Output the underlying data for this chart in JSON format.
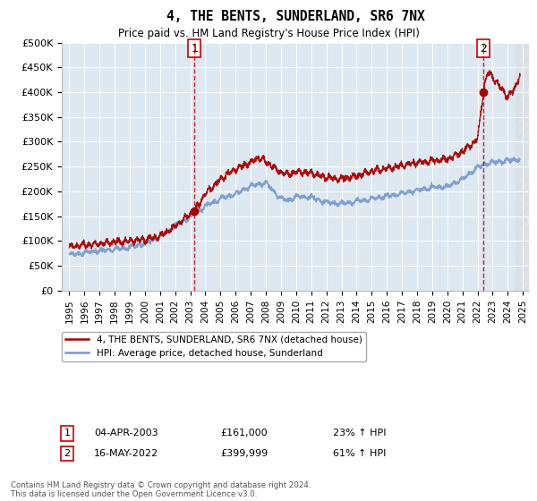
{
  "title": "4, THE BENTS, SUNDERLAND, SR6 7NX",
  "subtitle": "Price paid vs. HM Land Registry's House Price Index (HPI)",
  "ylim": [
    0,
    500000
  ],
  "yticks": [
    0,
    50000,
    100000,
    150000,
    200000,
    250000,
    300000,
    350000,
    400000,
    450000,
    500000
  ],
  "ytick_labels": [
    "£0",
    "£50K",
    "£100K",
    "£150K",
    "£200K",
    "£250K",
    "£300K",
    "£350K",
    "£400K",
    "£450K",
    "£500K"
  ],
  "xlim_start": 1994.5,
  "xlim_end": 2025.4,
  "xtick_years": [
    1995,
    1996,
    1997,
    1998,
    1999,
    2000,
    2001,
    2002,
    2003,
    2004,
    2005,
    2006,
    2007,
    2008,
    2009,
    2010,
    2011,
    2012,
    2013,
    2014,
    2015,
    2016,
    2017,
    2018,
    2019,
    2020,
    2021,
    2022,
    2023,
    2024,
    2025
  ],
  "plot_bg": "#dde8f0",
  "line_color_property": "#aa0000",
  "line_color_hpi": "#7799cc",
  "sale1_x": 2003.27,
  "sale1_y": 161000,
  "sale2_x": 2022.38,
  "sale2_y": 399999,
  "legend_label1": "4, THE BENTS, SUNDERLAND, SR6 7NX (detached house)",
  "legend_label2": "HPI: Average price, detached house, Sunderland",
  "annotation1_date": "04-APR-2003",
  "annotation1_price": "£161,000",
  "annotation1_hpi": "23% ↑ HPI",
  "annotation2_date": "16-MAY-2022",
  "annotation2_price": "£399,999",
  "annotation2_hpi": "61% ↑ HPI",
  "footer": "Contains HM Land Registry data © Crown copyright and database right 2024.\nThis data is licensed under the Open Government Licence v3.0."
}
